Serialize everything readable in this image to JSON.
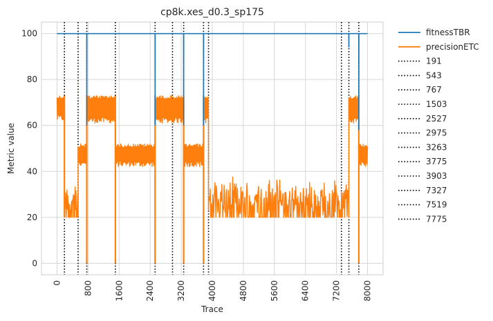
{
  "chart_data": {
    "type": "line",
    "title": "cp8k.xes_d0.3_sp175",
    "xlabel": "Trace",
    "ylabel": "Metric value",
    "xlim": [
      -400,
      8400
    ],
    "ylim": [
      -5,
      105
    ],
    "x_ticks": [
      0,
      800,
      1600,
      2400,
      3200,
      4000,
      4800,
      5600,
      6400,
      7200,
      8000
    ],
    "y_ticks": [
      0,
      20,
      40,
      60,
      80,
      100
    ],
    "grid": true,
    "legend_position": "outside-right",
    "series": [
      {
        "name": "fitnessTBR",
        "color": "#1f77b4",
        "points": [
          [
            0,
            100
          ],
          [
            765,
            100
          ],
          [
            767,
            60
          ],
          [
            769,
            100
          ],
          [
            1503,
            100
          ],
          [
            1505,
            100
          ],
          [
            2525,
            100
          ],
          [
            2527,
            60
          ],
          [
            2529,
            100
          ],
          [
            3261,
            100
          ],
          [
            3263,
            60
          ],
          [
            3265,
            100
          ],
          [
            3773,
            100
          ],
          [
            3775,
            60
          ],
          [
            3777,
            100
          ],
          [
            7517,
            100
          ],
          [
            7519,
            94
          ],
          [
            7521,
            100
          ],
          [
            7773,
            100
          ],
          [
            7775,
            58
          ],
          [
            7777,
            100
          ],
          [
            8000,
            100
          ]
        ]
      },
      {
        "name": "precisionETC",
        "color": "#ff7f0e",
        "segments": [
          {
            "x": [
              0,
              191
            ],
            "low": 62,
            "high": 73,
            "kind": "high-band"
          },
          {
            "x": [
              191,
              543
            ],
            "low": 20,
            "high": 36,
            "kind": "noise"
          },
          {
            "x": [
              543,
              767
            ],
            "low": 42,
            "high": 52,
            "kind": "band"
          },
          {
            "x": [
              767,
              1503
            ],
            "low": 61,
            "high": 73,
            "kind": "high-band"
          },
          {
            "x": [
              1503,
              2527
            ],
            "low": 42,
            "high": 52,
            "kind": "band"
          },
          {
            "x": [
              2527,
              3263
            ],
            "low": 61,
            "high": 73,
            "kind": "high-band"
          },
          {
            "x": [
              3263,
              3775
            ],
            "low": 42,
            "high": 52,
            "kind": "band"
          },
          {
            "x": [
              3775,
              3903
            ],
            "low": 61,
            "high": 73,
            "kind": "high-band"
          },
          {
            "x": [
              3903,
              7519
            ],
            "low": 20,
            "high": 38,
            "kind": "noise"
          },
          {
            "x": [
              7519,
              7775
            ],
            "low": 61,
            "high": 73,
            "kind": "high-band"
          },
          {
            "x": [
              7775,
              8000
            ],
            "low": 42,
            "high": 52,
            "kind": "band"
          }
        ],
        "dips": [
          {
            "x": 191,
            "value": 20
          },
          {
            "x": 767,
            "value": 0
          },
          {
            "x": 1503,
            "value": 0
          },
          {
            "x": 2527,
            "value": 0
          },
          {
            "x": 3263,
            "value": 0
          },
          {
            "x": 3775,
            "value": 0
          },
          {
            "x": 7775,
            "value": 0
          }
        ]
      }
    ],
    "vlines": [
      191,
      543,
      767,
      1503,
      2527,
      2975,
      3263,
      3775,
      3903,
      7327,
      7519,
      7775
    ],
    "vline_style": "dotted",
    "vline_color": "#000000"
  }
}
